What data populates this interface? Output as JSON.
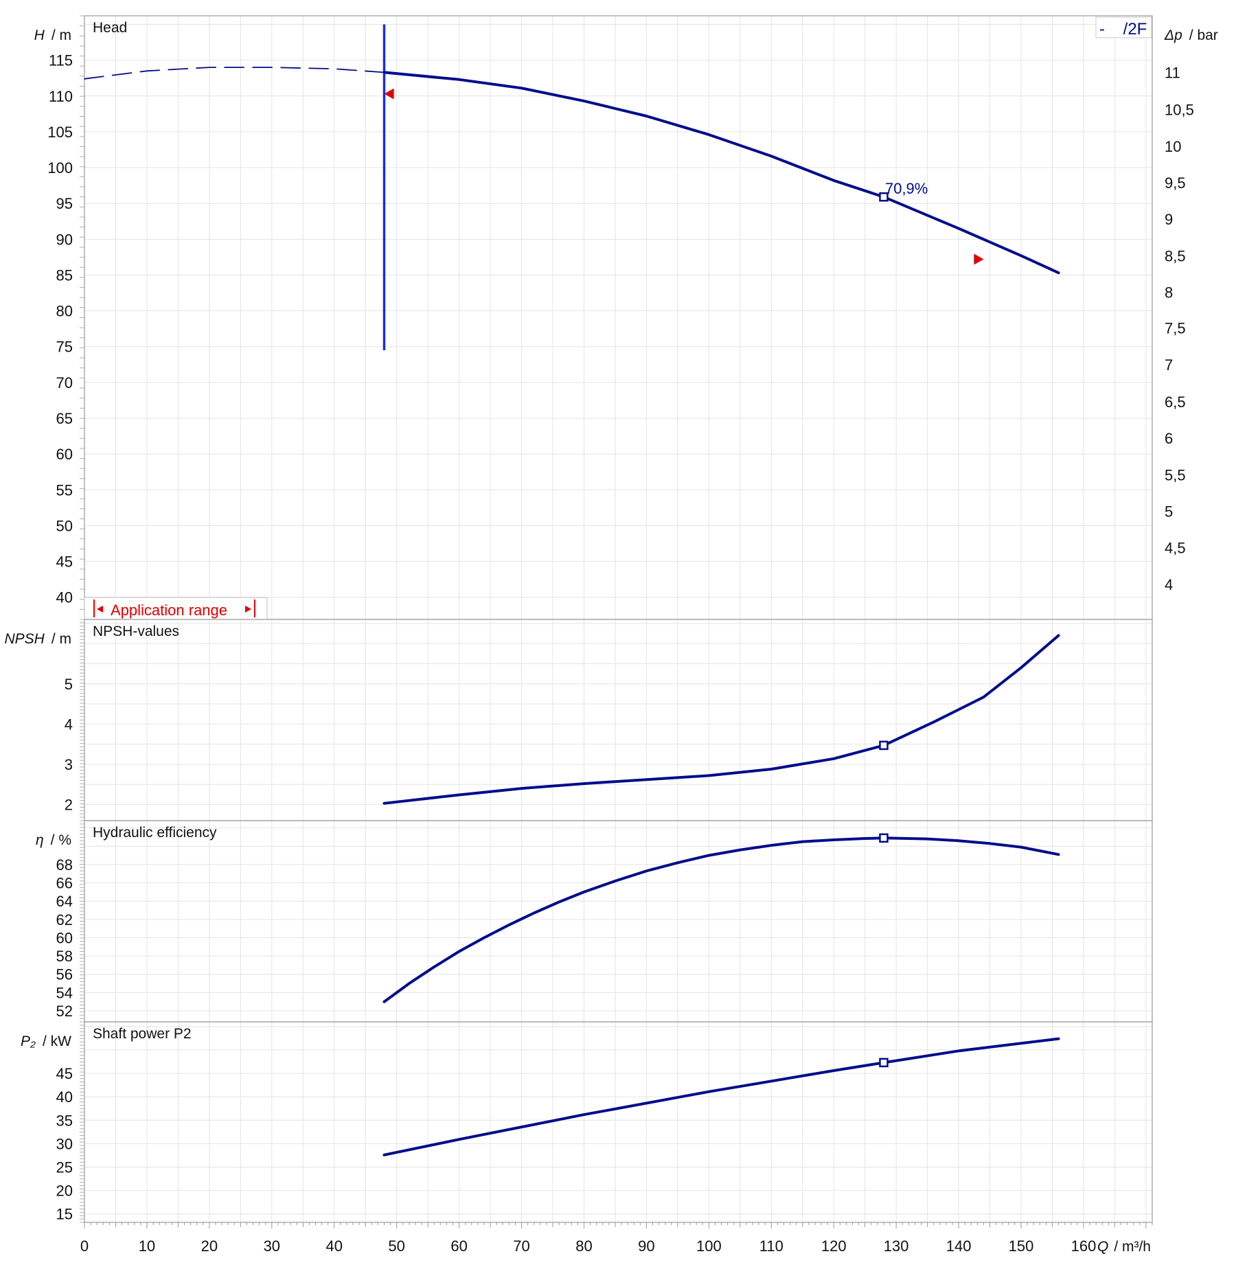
{
  "chart_data": {
    "type": "line",
    "x_axis": {
      "label_symbol": "Q",
      "label_unit": "/ m³/h",
      "ticks": [
        "0",
        "10",
        "20",
        "30",
        "40",
        "50",
        "60",
        "70",
        "80",
        "90",
        "100",
        "110",
        "120",
        "130",
        "140",
        "150",
        "160"
      ],
      "range": [
        0,
        171
      ]
    },
    "legend": {
      "text": "-    /2F",
      "position": "top-right"
    },
    "grid": true,
    "colors": {
      "curve": "#000c8c",
      "range_line": "#1a2fd6",
      "annotation": "#e00000",
      "grid": "#e4e4e4",
      "frame": "#9a9a9a"
    },
    "panels": [
      {
        "id": "head",
        "title": "Head",
        "ylabel_symbol": "H",
        "ylabel_unit": "/ m",
        "ylim": [
          36.9,
          121.2
        ],
        "yticks": [
          "40",
          "45",
          "50",
          "55",
          "60",
          "65",
          "70",
          "75",
          "80",
          "85",
          "90",
          "95",
          "100",
          "105",
          "110",
          "115"
        ],
        "right_axis": {
          "label_symbol": "Δp",
          "label_unit": "/ bar",
          "ticks": [
            "4",
            "4,5",
            "5",
            "5,5",
            "6",
            "6,5",
            "7",
            "7,5",
            "8",
            "8,5",
            "9",
            "9,5",
            "10",
            "10,5",
            "11"
          ],
          "ticks_in_head_m": [
            41.8,
            46.9,
            52.0,
            57.1,
            62.2,
            67.3,
            72.5,
            77.6,
            82.6,
            87.7,
            92.8,
            97.9,
            103.0,
            108.1,
            113.3
          ]
        },
        "series": [
          {
            "style": "dashed",
            "x": [
              0,
              10,
              20,
              30,
              40,
              48
            ],
            "y": [
              112.4,
              113.5,
              114.0,
              114.0,
              113.8,
              113.3
            ]
          },
          {
            "style": "solid",
            "x": [
              48,
              60,
              70,
              80,
              90,
              100,
              110,
              120,
              128,
              140,
              150,
              156
            ],
            "y": [
              113.3,
              112.3,
              111.1,
              109.3,
              107.2,
              104.6,
              101.6,
              98.2,
              95.9,
              91.5,
              87.7,
              85.3
            ]
          }
        ],
        "duty_point": {
          "x": 128,
          "y": 95.9,
          "label": "70,9%"
        },
        "min_flow_line": {
          "x": 48,
          "y_from": 74.5,
          "y_to": 120
        },
        "range_markers": [
          {
            "x": 49,
            "y": 110.3,
            "direction": "left"
          },
          {
            "x": 143,
            "y": 87.2,
            "direction": "right"
          }
        ],
        "application_range_label": "Application range"
      },
      {
        "id": "npsh",
        "title": "NPSH-values",
        "ylabel_symbol": "NPSH",
        "ylabel_unit": "/ m",
        "ylim": [
          1.6,
          6.6
        ],
        "yticks": [
          "2",
          "3",
          "4",
          "5"
        ],
        "series": [
          {
            "style": "solid",
            "x": [
              48,
              60,
              70,
              80,
              90,
              100,
              110,
              120,
              128,
              136,
              144,
              150,
              156
            ],
            "y": [
              2.03,
              2.24,
              2.4,
              2.52,
              2.62,
              2.72,
              2.88,
              3.14,
              3.47,
              4.05,
              4.67,
              5.4,
              6.2
            ]
          }
        ],
        "duty_point": {
          "x": 128,
          "y": 3.47
        }
      },
      {
        "id": "efficiency",
        "title": "Hydraulic efficiency",
        "ylabel_symbol": "η",
        "ylabel_unit": "/ %",
        "ylim": [
          50.8,
          72.8
        ],
        "yticks": [
          "52",
          "54",
          "56",
          "58",
          "60",
          "62",
          "64",
          "66",
          "68"
        ],
        "series": [
          {
            "style": "solid",
            "x": [
              48,
              52,
              56,
              60,
              64,
              68,
              72,
              76,
              80,
              85,
              90,
              95,
              100,
              105,
              110,
              115,
              120,
              125,
              128,
              135,
              140,
              145,
              150,
              156
            ],
            "y": [
              53.0,
              55.0,
              56.8,
              58.5,
              60.0,
              61.4,
              62.7,
              63.9,
              65.0,
              66.2,
              67.3,
              68.2,
              69.0,
              69.6,
              70.1,
              70.5,
              70.7,
              70.85,
              70.9,
              70.8,
              70.6,
              70.3,
              69.9,
              69.1
            ]
          }
        ],
        "duty_point": {
          "x": 128,
          "y": 70.9
        }
      },
      {
        "id": "power",
        "title": "Shaft power P2",
        "ylabel_symbol": "P₂",
        "ylabel_unit": "/ kW",
        "ylim": [
          13.2,
          56.0
        ],
        "yticks": [
          "15",
          "20",
          "25",
          "30",
          "35",
          "40",
          "45"
        ],
        "series": [
          {
            "style": "solid",
            "x": [
              48,
              60,
              80,
              100,
              120,
              128,
              140,
              156
            ],
            "y": [
              27.6,
              30.9,
              36.2,
              41.1,
              45.6,
              47.3,
              49.8,
              52.4
            ]
          }
        ],
        "duty_point": {
          "x": 128,
          "y": 47.3
        }
      }
    ]
  }
}
